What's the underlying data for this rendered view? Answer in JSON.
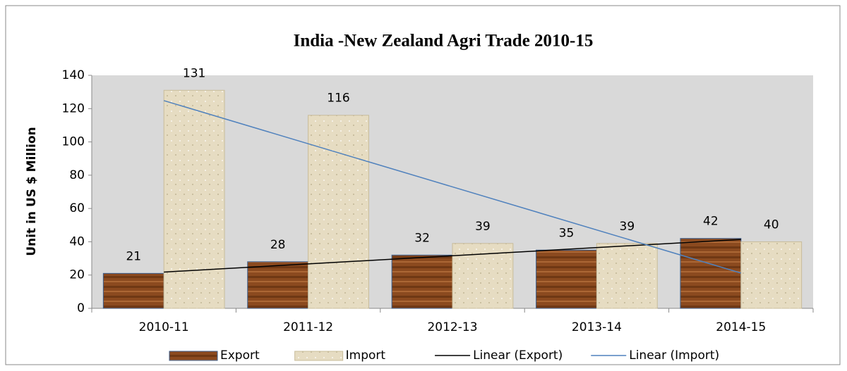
{
  "chart_data": {
    "type": "bar",
    "title": "India -New Zealand Agri Trade 2010-15",
    "y_label": "Unit in US $ Million",
    "categories": [
      "2010-11",
      "2011-12",
      "2012-13",
      "2013-14",
      "2014-15"
    ],
    "series": [
      {
        "name": "Export",
        "color": "#8b4a1f",
        "values": [
          21,
          28,
          32,
          35,
          42
        ],
        "trendline": {
          "name": "Linear (Export)",
          "color": "#000000"
        }
      },
      {
        "name": "Import",
        "color": "#e6dcc2",
        "values": [
          131,
          116,
          39,
          39,
          40
        ],
        "trendline": {
          "name": "Linear (Import)",
          "color": "#4f81bd"
        }
      }
    ],
    "ylim": [
      0,
      140
    ],
    "yticks": [
      0,
      20,
      40,
      60,
      80,
      100,
      120,
      140
    ],
    "grid": false,
    "legend": "bottom",
    "plot_background": "#d9d9d9"
  }
}
